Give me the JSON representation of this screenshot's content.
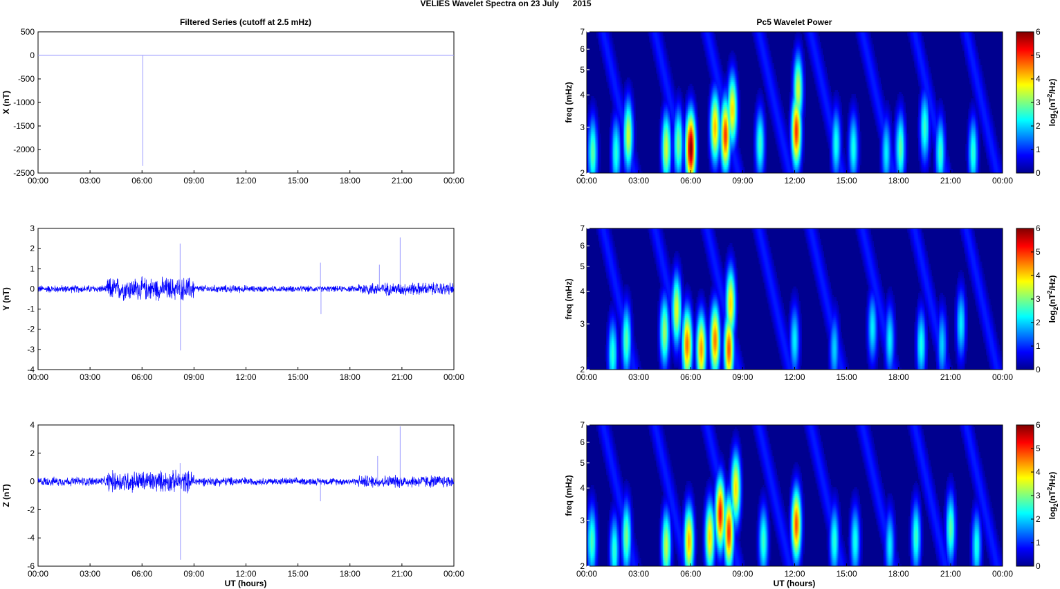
{
  "suptitle": "VELIES Wavelet Spectra on 23 July      2015",
  "left_title": "Filtered Series (cutoff at 2.5 mHz)",
  "right_title": "Pc5 Wavelet Power",
  "xlabel": "UT (hours)",
  "x_ticks": [
    "00:00",
    "03:00",
    "06:00",
    "09:00",
    "12:00",
    "15:00",
    "18:00",
    "21:00",
    "00:00"
  ],
  "colors": {
    "series": "#0000ff",
    "spike": "#9999ff",
    "axis": "#000000",
    "bg": "#00008f"
  },
  "chart_data": [
    {
      "type": "line",
      "name": "X panel",
      "ylabel": "X (nT)",
      "xlim": [
        0,
        24
      ],
      "ylim": [
        -2500,
        500
      ],
      "yticks": [
        -2500,
        -2000,
        -1500,
        -1000,
        -500,
        0,
        500
      ],
      "baseline": 0,
      "spikes": [
        {
          "x": 6.05,
          "y": -2350
        }
      ]
    },
    {
      "type": "line",
      "name": "Y panel",
      "ylabel": "Y (nT)",
      "xlim": [
        0,
        24
      ],
      "ylim": [
        -4,
        3
      ],
      "yticks": [
        -4,
        -3,
        -2,
        -1,
        0,
        1,
        2,
        3
      ],
      "noise_envelope": [
        {
          "from": 0,
          "to": 4,
          "amp": 0.15
        },
        {
          "from": 4,
          "to": 9,
          "amp": 0.45
        },
        {
          "from": 9,
          "to": 12,
          "amp": 0.15
        },
        {
          "from": 12,
          "to": 18.5,
          "amp": 0.12
        },
        {
          "from": 18.5,
          "to": 24,
          "amp": 0.25
        }
      ],
      "spikes": [
        {
          "x": 8.2,
          "y": 2.25
        },
        {
          "x": 8.22,
          "y": -3.05
        },
        {
          "x": 16.3,
          "y": 1.3
        },
        {
          "x": 16.33,
          "y": -1.25
        },
        {
          "x": 20.9,
          "y": 2.55
        },
        {
          "x": 19.7,
          "y": 1.2
        }
      ]
    },
    {
      "type": "line",
      "name": "Z panel",
      "ylabel": "Z (nT)",
      "xlim": [
        0,
        24
      ],
      "ylim": [
        -6,
        4
      ],
      "yticks": [
        -6,
        -4,
        -2,
        0,
        2,
        4
      ],
      "noise_envelope": [
        {
          "from": 0,
          "to": 4,
          "amp": 0.25
        },
        {
          "from": 4,
          "to": 9,
          "amp": 0.6
        },
        {
          "from": 9,
          "to": 12,
          "amp": 0.25
        },
        {
          "from": 12,
          "to": 18.5,
          "amp": 0.2
        },
        {
          "from": 18.5,
          "to": 24,
          "amp": 0.35
        }
      ],
      "spikes": [
        {
          "x": 8.2,
          "y": 1.3
        },
        {
          "x": 8.22,
          "y": -5.55
        },
        {
          "x": 16.3,
          "y": -1.4
        },
        {
          "x": 20.9,
          "y": 3.9
        },
        {
          "x": 19.6,
          "y": 1.8
        }
      ]
    },
    {
      "type": "heatmap",
      "name": "X wavelet power",
      "ylabel": "freq (mHz)",
      "yscale": "log",
      "xlim": [
        0,
        24
      ],
      "ylim": [
        2,
        7
      ],
      "yticks": [
        2,
        3,
        4,
        5,
        6,
        7
      ],
      "colorbar": {
        "label": "log2(nT^2/Hz)",
        "range": [
          0,
          6
        ],
        "ticks": [
          0,
          1,
          2,
          3,
          4,
          5,
          6
        ]
      },
      "blobs": [
        {
          "t": 0.35,
          "f": 2.4,
          "p": 2.8
        },
        {
          "t": 1.7,
          "f": 2.4,
          "p": 2.5
        },
        {
          "t": 2.4,
          "f": 2.8,
          "p": 3.5
        },
        {
          "t": 4.6,
          "f": 2.5,
          "p": 3.5
        },
        {
          "t": 5.3,
          "f": 2.6,
          "p": 3.0
        },
        {
          "t": 6.0,
          "f": 2.5,
          "p": 6.0
        },
        {
          "t": 7.4,
          "f": 3.0,
          "p": 4.2
        },
        {
          "t": 8.0,
          "f": 2.8,
          "p": 5.0
        },
        {
          "t": 8.4,
          "f": 3.5,
          "p": 4.0
        },
        {
          "t": 10.0,
          "f": 2.6,
          "p": 2.6
        },
        {
          "t": 12.1,
          "f": 2.9,
          "p": 5.0
        },
        {
          "t": 12.2,
          "f": 4.2,
          "p": 3.5
        },
        {
          "t": 14.4,
          "f": 2.6,
          "p": 2.4
        },
        {
          "t": 15.4,
          "f": 2.5,
          "p": 2.4
        },
        {
          "t": 17.3,
          "f": 2.4,
          "p": 2.2
        },
        {
          "t": 18.1,
          "f": 2.5,
          "p": 2.8
        },
        {
          "t": 19.5,
          "f": 3.0,
          "p": 2.6
        },
        {
          "t": 20.4,
          "f": 2.4,
          "p": 2.6
        },
        {
          "t": 22.3,
          "f": 2.4,
          "p": 2.5
        }
      ]
    },
    {
      "type": "heatmap",
      "name": "Y wavelet power",
      "ylabel": "freq (mHz)",
      "yscale": "log",
      "xlim": [
        0,
        24
      ],
      "ylim": [
        2,
        7
      ],
      "yticks": [
        2,
        3,
        4,
        5,
        6,
        7
      ],
      "colorbar": {
        "label": "log2(nT^2/Hz)",
        "range": [
          0,
          6
        ],
        "ticks": [
          0,
          1,
          2,
          3,
          4,
          5,
          6
        ]
      },
      "blobs": [
        {
          "t": 1.5,
          "f": 2.3,
          "p": 2.5
        },
        {
          "t": 2.3,
          "f": 2.6,
          "p": 2.8
        },
        {
          "t": 4.5,
          "f": 2.8,
          "p": 3.2
        },
        {
          "t": 5.2,
          "f": 3.4,
          "p": 3.6
        },
        {
          "t": 5.8,
          "f": 2.5,
          "p": 4.6
        },
        {
          "t": 6.6,
          "f": 2.4,
          "p": 4.4
        },
        {
          "t": 7.4,
          "f": 2.6,
          "p": 4.6
        },
        {
          "t": 8.2,
          "f": 2.4,
          "p": 4.8
        },
        {
          "t": 8.3,
          "f": 3.6,
          "p": 4.0
        },
        {
          "t": 12.0,
          "f": 2.6,
          "p": 2.2
        },
        {
          "t": 14.3,
          "f": 2.4,
          "p": 2.0
        },
        {
          "t": 16.5,
          "f": 2.9,
          "p": 2.2
        },
        {
          "t": 17.5,
          "f": 2.6,
          "p": 2.2
        },
        {
          "t": 19.3,
          "f": 2.5,
          "p": 2.4
        },
        {
          "t": 20.5,
          "f": 2.5,
          "p": 2.0
        },
        {
          "t": 21.6,
          "f": 3.0,
          "p": 2.2
        }
      ]
    },
    {
      "type": "heatmap",
      "name": "Z wavelet power",
      "ylabel": "freq (mHz)",
      "yscale": "log",
      "xlim": [
        0,
        24
      ],
      "ylim": [
        2,
        7
      ],
      "yticks": [
        2,
        3,
        4,
        5,
        6,
        7
      ],
      "colorbar": {
        "label": "log2(nT^2/Hz)",
        "range": [
          0,
          6
        ],
        "ticks": [
          0,
          1,
          2,
          3,
          4,
          5,
          6
        ]
      },
      "blobs": [
        {
          "t": 0.3,
          "f": 2.5,
          "p": 2.7
        },
        {
          "t": 1.6,
          "f": 2.3,
          "p": 2.5
        },
        {
          "t": 2.3,
          "f": 2.6,
          "p": 3.0
        },
        {
          "t": 4.6,
          "f": 2.4,
          "p": 3.4
        },
        {
          "t": 5.9,
          "f": 2.5,
          "p": 4.2
        },
        {
          "t": 7.1,
          "f": 2.6,
          "p": 4.0
        },
        {
          "t": 7.7,
          "f": 3.2,
          "p": 5.2
        },
        {
          "t": 8.2,
          "f": 2.7,
          "p": 5.0
        },
        {
          "t": 8.6,
          "f": 4.0,
          "p": 4.0
        },
        {
          "t": 10.2,
          "f": 2.5,
          "p": 2.6
        },
        {
          "t": 12.1,
          "f": 2.9,
          "p": 4.8
        },
        {
          "t": 14.3,
          "f": 2.5,
          "p": 2.5
        },
        {
          "t": 15.5,
          "f": 2.5,
          "p": 2.4
        },
        {
          "t": 17.5,
          "f": 2.4,
          "p": 2.2
        },
        {
          "t": 19.0,
          "f": 2.6,
          "p": 2.6
        },
        {
          "t": 21.0,
          "f": 2.8,
          "p": 2.8
        },
        {
          "t": 22.5,
          "f": 2.4,
          "p": 2.4
        }
      ]
    }
  ]
}
